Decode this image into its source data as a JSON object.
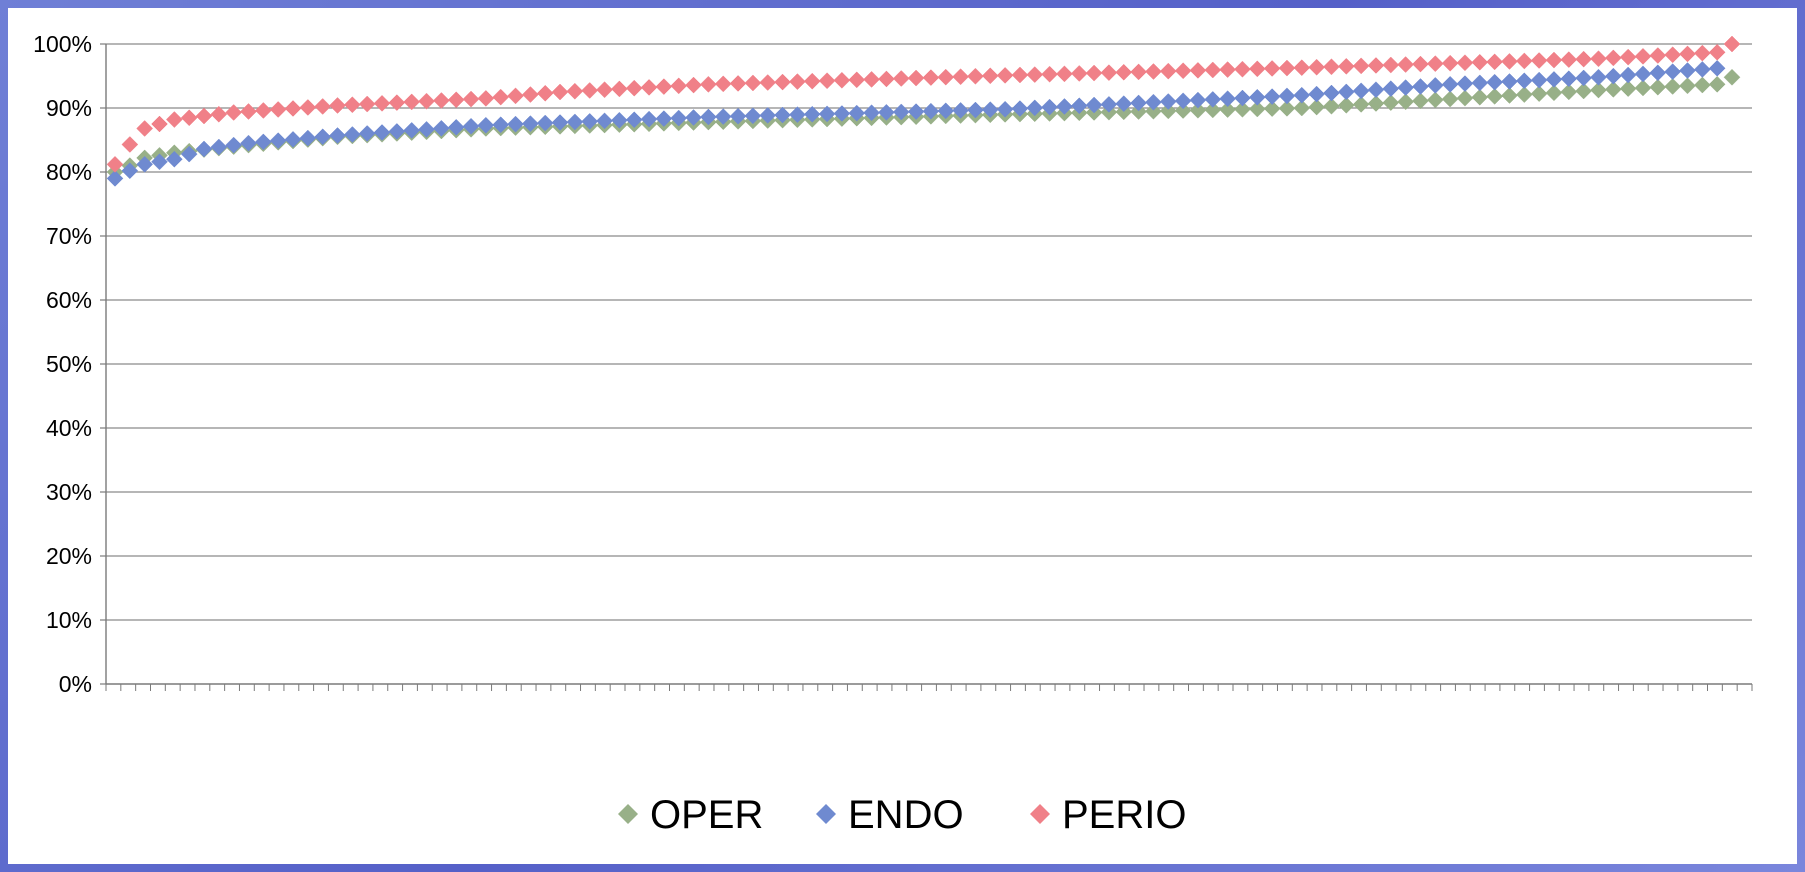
{
  "chart_data": {
    "type": "scatter",
    "ylim": [
      0,
      1
    ],
    "yticks": [
      {
        "value": 0,
        "label": "0%"
      },
      {
        "value": 0.1,
        "label": "10%"
      },
      {
        "value": 0.2,
        "label": "20%"
      },
      {
        "value": 0.3,
        "label": "30%"
      },
      {
        "value": 0.4,
        "label": "40%"
      },
      {
        "value": 0.5,
        "label": "50%"
      },
      {
        "value": 0.6,
        "label": "60%"
      },
      {
        "value": 0.7,
        "label": "70%"
      },
      {
        "value": 0.8,
        "label": "80%"
      },
      {
        "value": 0.9,
        "label": "90%"
      },
      {
        "value": 1,
        "label": "100%"
      }
    ],
    "grid": true,
    "legend": "bottom",
    "n_points": 110,
    "series": [
      {
        "name": "OPER",
        "color": "#98b088",
        "profile": [
          [
            0,
            0.8
          ],
          [
            1,
            0.81
          ],
          [
            2,
            0.822
          ],
          [
            4,
            0.83
          ],
          [
            6,
            0.835
          ],
          [
            9,
            0.842
          ],
          [
            15,
            0.855
          ],
          [
            25,
            0.868
          ],
          [
            40,
            0.878
          ],
          [
            60,
            0.89
          ],
          [
            80,
            0.9
          ],
          [
            100,
            0.928
          ],
          [
            108,
            0.937
          ],
          [
            109,
            0.948
          ]
        ]
      },
      {
        "name": "ENDO",
        "color": "#6f8ad0",
        "profile": [
          [
            0,
            0.79
          ],
          [
            1,
            0.802
          ],
          [
            2,
            0.812
          ],
          [
            4,
            0.82
          ],
          [
            6,
            0.836
          ],
          [
            9,
            0.845
          ],
          [
            15,
            0.857
          ],
          [
            25,
            0.873
          ],
          [
            40,
            0.886
          ],
          [
            60,
            0.898
          ],
          [
            80,
            0.92
          ],
          [
            90,
            0.937
          ],
          [
            100,
            0.948
          ],
          [
            108,
            0.962
          ],
          [
            109,
            1.0
          ]
        ]
      },
      {
        "name": "PERIO",
        "color": "#f08088",
        "profile": [
          [
            0,
            0.812
          ],
          [
            1,
            0.843
          ],
          [
            2,
            0.868
          ],
          [
            4,
            0.882
          ],
          [
            8,
            0.893
          ],
          [
            15,
            0.904
          ],
          [
            25,
            0.915
          ],
          [
            30,
            0.925
          ],
          [
            40,
            0.937
          ],
          [
            60,
            0.951
          ],
          [
            80,
            0.963
          ],
          [
            100,
            0.977
          ],
          [
            108,
            0.987
          ],
          [
            109,
            1.0
          ]
        ]
      }
    ]
  }
}
